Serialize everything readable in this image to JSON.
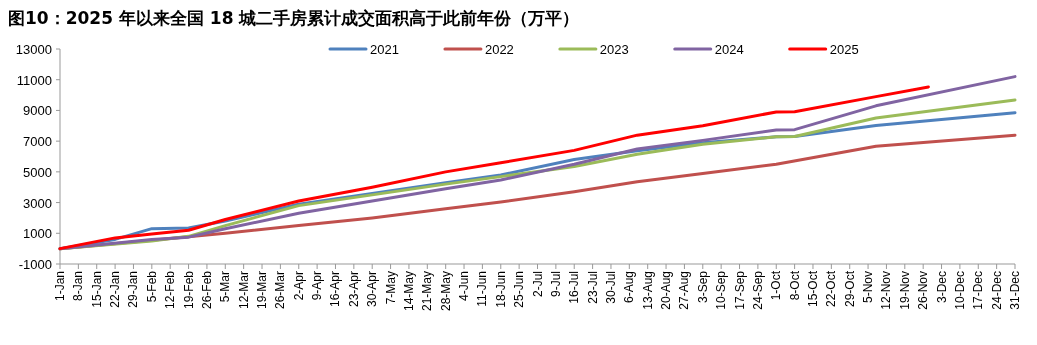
{
  "chart_data": {
    "type": "line",
    "title": "图10：2025 年以来全国 18 城二手房累计成交面积高于此前年份（万平）",
    "xlim": [
      "--01-01",
      "--12-31"
    ],
    "ylim": [
      -1000,
      13000
    ],
    "yticks": [
      -1000,
      1000,
      3000,
      5000,
      7000,
      9000,
      11000,
      13000
    ],
    "xticks": [
      {
        "value": "--01-01",
        "label": "1-Jan"
      },
      {
        "value": "--01-08",
        "label": "8-Jan"
      },
      {
        "value": "--01-15",
        "label": "15-Jan"
      },
      {
        "value": "--01-22",
        "label": "22-Jan"
      },
      {
        "value": "--01-29",
        "label": "29-Jan"
      },
      {
        "value": "--02-05",
        "label": "5-Feb"
      },
      {
        "value": "--02-12",
        "label": "12-Feb"
      },
      {
        "value": "--02-19",
        "label": "19-Feb"
      },
      {
        "value": "--02-26",
        "label": "26-Feb"
      },
      {
        "value": "--03-05",
        "label": "5-Mar"
      },
      {
        "value": "--03-12",
        "label": "12-Mar"
      },
      {
        "value": "--03-19",
        "label": "19-Mar"
      },
      {
        "value": "--03-26",
        "label": "26-Mar"
      },
      {
        "value": "--04-02",
        "label": "2-Apr"
      },
      {
        "value": "--04-09",
        "label": "9-Apr"
      },
      {
        "value": "--04-16",
        "label": "16-Apr"
      },
      {
        "value": "--04-23",
        "label": "23-Apr"
      },
      {
        "value": "--04-30",
        "label": "30-Apr"
      },
      {
        "value": "--05-07",
        "label": "7-May"
      },
      {
        "value": "--05-14",
        "label": "14-May"
      },
      {
        "value": "--05-21",
        "label": "21-May"
      },
      {
        "value": "--05-28",
        "label": "28-May"
      },
      {
        "value": "--06-04",
        "label": "4-Jun"
      },
      {
        "value": "--06-11",
        "label": "11-Jun"
      },
      {
        "value": "--06-18",
        "label": "18-Jun"
      },
      {
        "value": "--06-25",
        "label": "25-Jun"
      },
      {
        "value": "--07-02",
        "label": "2-Jul"
      },
      {
        "value": "--07-09",
        "label": "9-Jul"
      },
      {
        "value": "--07-16",
        "label": "16-Jul"
      },
      {
        "value": "--07-23",
        "label": "23-Jul"
      },
      {
        "value": "--07-30",
        "label": "30-Jul"
      },
      {
        "value": "--08-06",
        "label": "6-Aug"
      },
      {
        "value": "--08-13",
        "label": "13-Aug"
      },
      {
        "value": "--08-20",
        "label": "20-Aug"
      },
      {
        "value": "--08-27",
        "label": "27-Aug"
      },
      {
        "value": "--09-03",
        "label": "3-Sep"
      },
      {
        "value": "--09-10",
        "label": "10-Sep"
      },
      {
        "value": "--09-17",
        "label": "17-Sep"
      },
      {
        "value": "--09-24",
        "label": "24-Sep"
      },
      {
        "value": "--10-01",
        "label": "1-Oct"
      },
      {
        "value": "--10-08",
        "label": "8-Oct"
      },
      {
        "value": "--10-15",
        "label": "15-Oct"
      },
      {
        "value": "--10-22",
        "label": "22-Oct"
      },
      {
        "value": "--10-29",
        "label": "29-Oct"
      },
      {
        "value": "--11-05",
        "label": "5-Nov"
      },
      {
        "value": "--11-12",
        "label": "12-Nov"
      },
      {
        "value": "--11-19",
        "label": "19-Nov"
      },
      {
        "value": "--11-26",
        "label": "26-Nov"
      },
      {
        "value": "--12-03",
        "label": "3-Dec"
      },
      {
        "value": "--12-10",
        "label": "10-Dec"
      },
      {
        "value": "--12-17",
        "label": "17-Dec"
      },
      {
        "value": "--12-24",
        "label": "24-Dec"
      },
      {
        "value": "--12-31",
        "label": "31-Dec"
      }
    ],
    "legend": "top",
    "grid": false,
    "marker": "none",
    "line_style": "solid",
    "series": [
      {
        "name": "2021",
        "color": "#4f81bd",
        "x": [
          "--01-01",
          "--01-22",
          "--02-05",
          "--02-19",
          "--03-05",
          "--04-02",
          "--04-30",
          "--05-28",
          "--06-18",
          "--07-16",
          "--08-09",
          "--09-03",
          "--10-01",
          "--10-08",
          "--11-08",
          "--12-31"
        ],
        "values": [
          0,
          600,
          1300,
          1350,
          1800,
          2900,
          3600,
          4300,
          4800,
          5800,
          6380,
          6900,
          7280,
          7300,
          8020,
          8850
        ]
      },
      {
        "name": "2022",
        "color": "#c0504d",
        "x": [
          "--01-01",
          "--02-05",
          "--03-05",
          "--04-02",
          "--04-30",
          "--05-28",
          "--06-18",
          "--07-16",
          "--08-09",
          "--09-03",
          "--10-01",
          "--11-08",
          "--12-31"
        ],
        "values": [
          0,
          550,
          1000,
          1500,
          2000,
          2600,
          3030,
          3700,
          4360,
          4900,
          5500,
          6670,
          7390
        ]
      },
      {
        "name": "2023",
        "color": "#9bbb59",
        "x": [
          "--01-01",
          "--02-05",
          "--02-19",
          "--03-05",
          "--04-02",
          "--04-30",
          "--05-28",
          "--06-18",
          "--07-16",
          "--08-09",
          "--09-03",
          "--10-01",
          "--10-08",
          "--11-08",
          "--12-31"
        ],
        "values": [
          0,
          500,
          800,
          1500,
          2800,
          3500,
          4200,
          4690,
          5350,
          6150,
          6800,
          7280,
          7300,
          8510,
          9680
        ]
      },
      {
        "name": "2024",
        "color": "#8064a2",
        "x": [
          "--01-01",
          "--02-05",
          "--02-19",
          "--03-05",
          "--04-02",
          "--04-30",
          "--05-28",
          "--06-18",
          "--07-16",
          "--08-09",
          "--09-03",
          "--10-01",
          "--10-08",
          "--11-08",
          "--12-31"
        ],
        "values": [
          0,
          600,
          750,
          1300,
          2300,
          3100,
          3900,
          4470,
          5500,
          6490,
          7050,
          7730,
          7750,
          9300,
          11200
        ]
      },
      {
        "name": "2025",
        "color": "#ff0000",
        "x": [
          "--01-01",
          "--01-22",
          "--02-05",
          "--02-19",
          "--03-05",
          "--04-02",
          "--04-30",
          "--05-28",
          "--06-18",
          "--07-16",
          "--08-09",
          "--09-03",
          "--10-01",
          "--10-08",
          "--11-08",
          "--11-28"
        ],
        "values": [
          0,
          700,
          950,
          1200,
          1900,
          3100,
          4000,
          5000,
          5590,
          6400,
          7390,
          8000,
          8900,
          8920,
          9900,
          10530
        ]
      }
    ]
  }
}
